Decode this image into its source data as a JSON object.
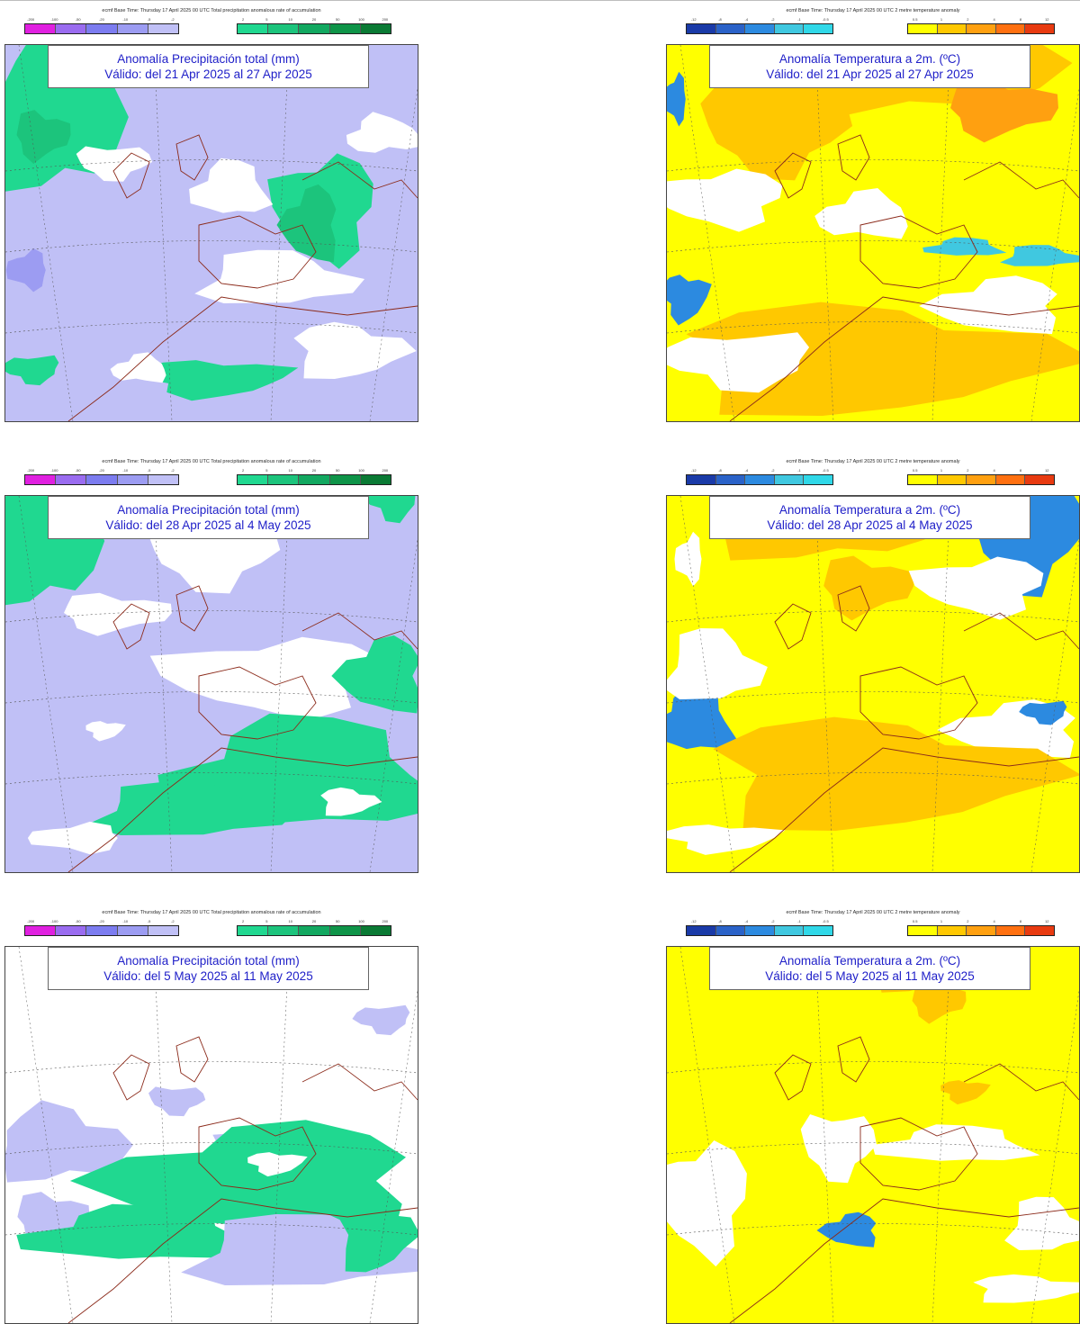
{
  "panels": [
    {
      "id": "prec-1",
      "kind": "precip",
      "header": "ecmf  Base Time: Thursday 17 April 2025 00 UTC  Total precipitation anomalous rate of accumulation",
      "title": "Anomalía Precipitación total (mm)",
      "valid": "Válido: del 21 Apr 2025 al 27 Apr 2025"
    },
    {
      "id": "temp-1",
      "kind": "temp",
      "header": "ecmf  Base Time: Thursday 17 April 2025 00 UTC  2 metre temperature anomaly",
      "title": "Anomalía Temperatura a 2m. (ºC)",
      "valid": "Válido: del 21 Apr 2025 al 27 Apr 2025"
    },
    {
      "id": "prec-2",
      "kind": "precip",
      "header": "ecmf  Base Time: Thursday 17 April 2025 00 UTC  Total precipitation anomalous rate of accumulation",
      "title": "Anomalía Precipitación total (mm)",
      "valid": "Válido: del 28 Apr 2025 al 4 May 2025"
    },
    {
      "id": "temp-2",
      "kind": "temp",
      "header": "ecmf  Base Time: Thursday 17 April 2025 00 UTC  2 metre temperature anomaly",
      "title": "Anomalía Temperatura a 2m. (ºC)",
      "valid": "Válido: del 28 Apr 2025 al 4 May 2025"
    },
    {
      "id": "prec-3",
      "kind": "precip",
      "header": "ecmf  Base Time: Thursday 17 April 2025 00 UTC  Total precipitation anomalous rate of accumulation",
      "title": "Anomalía Precipitación total (mm)",
      "valid": "Válido: del 5 May 2025 al 11 May 2025"
    },
    {
      "id": "temp-3",
      "kind": "temp",
      "header": "ecmf  Base Time: Thursday 17 April 2025 00 UTC  2 metre temperature anomaly",
      "title": "Anomalía Temperatura a 2m. (ºC)",
      "valid": "Válido: del 5 May 2025 al 11 May 2025"
    }
  ],
  "legends": {
    "precip": {
      "negative_ticks": [
        "-200",
        "-100",
        "-50",
        "-20",
        "-10",
        "-5",
        "-2"
      ],
      "negative_colors": [
        "#e020e0",
        "#9a6cf0",
        "#7c7cf0",
        "#9c9cf2",
        "#c0c0f6"
      ],
      "positive_ticks": [
        "2",
        "5",
        "10",
        "20",
        "50",
        "100",
        "200"
      ],
      "positive_colors": [
        "#20d890",
        "#1cc47c",
        "#12a860",
        "#0e9448",
        "#0a7a34"
      ]
    },
    "temp": {
      "negative_ticks": [
        "-12",
        "-8",
        "-4",
        "-2",
        "-1",
        "-0.5"
      ],
      "negative_colors": [
        "#1a3aa8",
        "#2a62c8",
        "#2c8ae0",
        "#40c8e0",
        "#30d8e8"
      ],
      "positive_ticks": [
        "0.5",
        "1",
        "2",
        "4",
        "8",
        "12"
      ],
      "positive_colors": [
        "#ffff00",
        "#ffc800",
        "#ffa010",
        "#ff7010",
        "#e83a10"
      ]
    }
  }
}
